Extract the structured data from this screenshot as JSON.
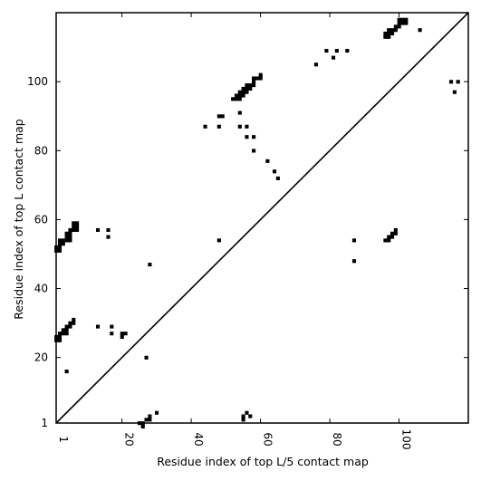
{
  "chart_data": {
    "type": "scatter",
    "xlabel": "Residue index of top L/5 contact map",
    "ylabel": "Residue index of top L contact map",
    "xlim": [
      1,
      120
    ],
    "ylim": [
      1,
      120
    ],
    "xticks": [
      1,
      20,
      40,
      60,
      80,
      100
    ],
    "yticks": [
      1,
      20,
      40,
      60,
      80,
      100
    ],
    "grid": false,
    "diagonal": true,
    "point_color": "#000000",
    "series": [
      {
        "points": [
          [
            1,
            25
          ],
          [
            1,
            26
          ],
          [
            2,
            25
          ],
          [
            2,
            26
          ],
          [
            2,
            27
          ],
          [
            3,
            27
          ],
          [
            4,
            27
          ],
          [
            4,
            28
          ],
          [
            3,
            28
          ],
          [
            4,
            29
          ],
          [
            5,
            29
          ],
          [
            5,
            30
          ],
          [
            6,
            30
          ],
          [
            6,
            31
          ],
          [
            4,
            16
          ],
          [
            13,
            29
          ],
          [
            17,
            29
          ],
          [
            17,
            27
          ],
          [
            20,
            26
          ],
          [
            20,
            27
          ],
          [
            21,
            27
          ],
          [
            27,
            20
          ],
          [
            28,
            47
          ],
          [
            1,
            51
          ],
          [
            1,
            52
          ],
          [
            2,
            51
          ],
          [
            2,
            52
          ],
          [
            2,
            53
          ],
          [
            3,
            53
          ],
          [
            2,
            54
          ],
          [
            3,
            54
          ],
          [
            4,
            54
          ],
          [
            4,
            55
          ],
          [
            5,
            54
          ],
          [
            5,
            55
          ],
          [
            4,
            56
          ],
          [
            5,
            56
          ],
          [
            5,
            57
          ],
          [
            6,
            57
          ],
          [
            6,
            58
          ],
          [
            7,
            57
          ],
          [
            7,
            58
          ],
          [
            7,
            59
          ],
          [
            6,
            59
          ],
          [
            13,
            57
          ],
          [
            16,
            57
          ],
          [
            16,
            55
          ],
          [
            25,
            1
          ],
          [
            26,
            1
          ],
          [
            26,
            0
          ],
          [
            27,
            2
          ],
          [
            28,
            2
          ],
          [
            28,
            3
          ],
          [
            30,
            4
          ],
          [
            44,
            87
          ],
          [
            48,
            87
          ],
          [
            48,
            90
          ],
          [
            49,
            90
          ],
          [
            48,
            54
          ],
          [
            52,
            95
          ],
          [
            53,
            95
          ],
          [
            53,
            96
          ],
          [
            54,
            95
          ],
          [
            54,
            96
          ],
          [
            54,
            97
          ],
          [
            55,
            96
          ],
          [
            55,
            97
          ],
          [
            55,
            98
          ],
          [
            56,
            97
          ],
          [
            56,
            98
          ],
          [
            56,
            99
          ],
          [
            57,
            98
          ],
          [
            57,
            99
          ],
          [
            58,
            99
          ],
          [
            58,
            100
          ],
          [
            58,
            101
          ],
          [
            59,
            101
          ],
          [
            60,
            101
          ],
          [
            60,
            102
          ],
          [
            54,
            91
          ],
          [
            54,
            87
          ],
          [
            56,
            87
          ],
          [
            56,
            84
          ],
          [
            58,
            84
          ],
          [
            58,
            80
          ],
          [
            62,
            77
          ],
          [
            64,
            74
          ],
          [
            65,
            72
          ],
          [
            55,
            2
          ],
          [
            55,
            3
          ],
          [
            56,
            4
          ],
          [
            57,
            3
          ],
          [
            76,
            105
          ],
          [
            79,
            109
          ],
          [
            81,
            107
          ],
          [
            82,
            109
          ],
          [
            85,
            109
          ],
          [
            87,
            54
          ],
          [
            87,
            48
          ],
          [
            96,
            54
          ],
          [
            97,
            54
          ],
          [
            97,
            55
          ],
          [
            98,
            55
          ],
          [
            98,
            56
          ],
          [
            99,
            56
          ],
          [
            99,
            57
          ],
          [
            96,
            113
          ],
          [
            96,
            114
          ],
          [
            97,
            113
          ],
          [
            97,
            114
          ],
          [
            98,
            114
          ],
          [
            97,
            115
          ],
          [
            98,
            115
          ],
          [
            99,
            115
          ],
          [
            99,
            116
          ],
          [
            100,
            116
          ],
          [
            100,
            117
          ],
          [
            101,
            117
          ],
          [
            101,
            118
          ],
          [
            102,
            117
          ],
          [
            102,
            118
          ],
          [
            100,
            118
          ],
          [
            106,
            115
          ],
          [
            115,
            100
          ],
          [
            116,
            97
          ],
          [
            117,
            100
          ]
        ]
      }
    ]
  }
}
